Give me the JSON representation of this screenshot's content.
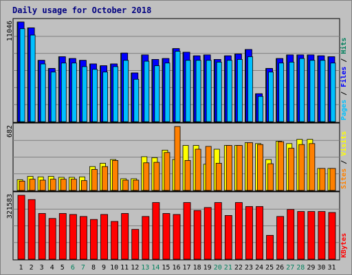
{
  "chart_data": {
    "type": "bar",
    "title": "Daily usage for October 2018",
    "title_color": "#000080",
    "background": "#c0c0c0",
    "grid": true,
    "days": [
      "1",
      "2",
      "3",
      "4",
      "5",
      "6",
      "7",
      "8",
      "9",
      "10",
      "11",
      "12",
      "13",
      "14",
      "15",
      "16",
      "17",
      "18",
      "19",
      "20",
      "21",
      "22",
      "23",
      "24",
      "25",
      "26",
      "27",
      "28",
      "29",
      "30",
      "31"
    ],
    "weekend_days": [
      6,
      7,
      13,
      14,
      20,
      21,
      27,
      28
    ],
    "weekday_color": "#000000",
    "weekend_color": "#00805c",
    "panels": [
      {
        "name": "hits-pages-files",
        "max_label": "11046",
        "max": 11046,
        "legend": [
          {
            "text": "Pages",
            "color": "#00c0ff"
          },
          {
            "text": "Files",
            "color": "#0000ff"
          },
          {
            "text": "Hits",
            "color": "#00805c"
          }
        ],
        "series": [
          {
            "name": "Hits",
            "color": "#00805c",
            "values": [
              11046,
              10400,
              6800,
              5900,
              7200,
              7000,
              6800,
              6400,
              6200,
              6400,
              7600,
              5400,
              7400,
              6900,
              7000,
              8100,
              7700,
              7300,
              7400,
              6900,
              7300,
              7500,
              8000,
              3100,
              5900,
              7000,
              7400,
              7400,
              7400,
              7300,
              7200
            ]
          },
          {
            "name": "Files",
            "color": "#0000ff",
            "values": [
              11046,
              10400,
              6800,
              5900,
              7200,
              7000,
              6800,
              6400,
              6200,
              6400,
              7600,
              5400,
              7400,
              6900,
              7000,
              8100,
              7700,
              7300,
              7400,
              6900,
              7300,
              7500,
              8000,
              3100,
              5900,
              7000,
              7400,
              7400,
              7400,
              7300,
              7200
            ]
          },
          {
            "name": "Pages",
            "color": "#00c0ff",
            "values": [
              10300,
              9600,
              6400,
              5500,
              6500,
              6500,
              6100,
              5800,
              5500,
              6100,
              6800,
              4700,
              6700,
              6200,
              6500,
              7800,
              6800,
              6800,
              6800,
              6600,
              6800,
              6900,
              7200,
              2800,
              5500,
              6500,
              6600,
              7000,
              6800,
              6800,
              6500
            ]
          }
        ]
      },
      {
        "name": "visits-sites",
        "max_label": "682",
        "max": 682,
        "legend": [
          {
            "text": "Sites",
            "color": "#ff8000"
          },
          {
            "text": "Visits",
            "color": "#ffff00"
          }
        ],
        "series": [
          {
            "name": "Visits",
            "color": "#ffff00",
            "values": [
              115,
              150,
              145,
              150,
              140,
              140,
              145,
              255,
              290,
              330,
              125,
              125,
              360,
              350,
              430,
              330,
              480,
              480,
              280,
              440,
              480,
              480,
              510,
              500,
              330,
              525,
              500,
              545,
              545,
              235,
              235
            ]
          },
          {
            "name": "Sites",
            "color": "#ff8000",
            "values": [
              100,
              120,
              110,
              120,
              120,
              120,
              105,
              225,
              255,
              320,
              110,
              110,
              295,
              300,
              405,
              682,
              320,
              440,
              470,
              290,
              480,
              480,
              510,
              490,
              285,
              520,
              450,
              490,
              500,
              235,
              235
            ]
          }
        ]
      },
      {
        "name": "kbytes",
        "max_label": "321583",
        "max": 321583,
        "legend": [
          {
            "text": "KBytes",
            "color": "#ff0000"
          }
        ],
        "series": [
          {
            "name": "KBytes",
            "color": "#ff0000",
            "values": [
              321583,
              300000,
              230000,
              205000,
              230000,
              225000,
              215000,
              200000,
              225000,
              190000,
              230000,
              150000,
              215000,
              285000,
              230000,
              225000,
              285000,
              245000,
              260000,
              285000,
              220000,
              285000,
              265000,
              265000,
              120000,
              215000,
              250000,
              240000,
              240000,
              240000,
              235000
            ]
          }
        ]
      }
    ]
  }
}
